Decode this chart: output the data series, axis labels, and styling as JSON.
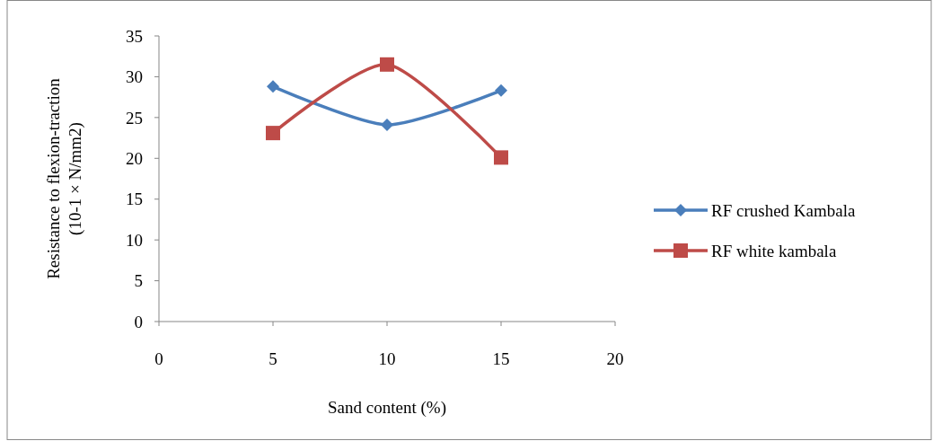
{
  "chart_data": {
    "type": "line",
    "xlabel": "Sand content (%)",
    "ylabel": "Resistance to flexion-traction (10-1 × N/mm2)",
    "x": [
      5,
      10,
      15
    ],
    "series": [
      {
        "name": "RF crushed Kambala",
        "color": "#4a7ebb",
        "marker": "diamond",
        "values": [
          28.8,
          24.1,
          28.3
        ]
      },
      {
        "name": "RF white kambala",
        "color": "#be4b48",
        "marker": "square",
        "values": [
          23.1,
          31.5,
          20.1
        ]
      }
    ],
    "xlim": [
      0,
      20
    ],
    "xticks": [
      0,
      5,
      10,
      15,
      20
    ],
    "ylim": [
      0,
      35
    ],
    "yticks": [
      0,
      5,
      10,
      15,
      20,
      25,
      30,
      35
    ],
    "grid": false,
    "legend": "right"
  }
}
